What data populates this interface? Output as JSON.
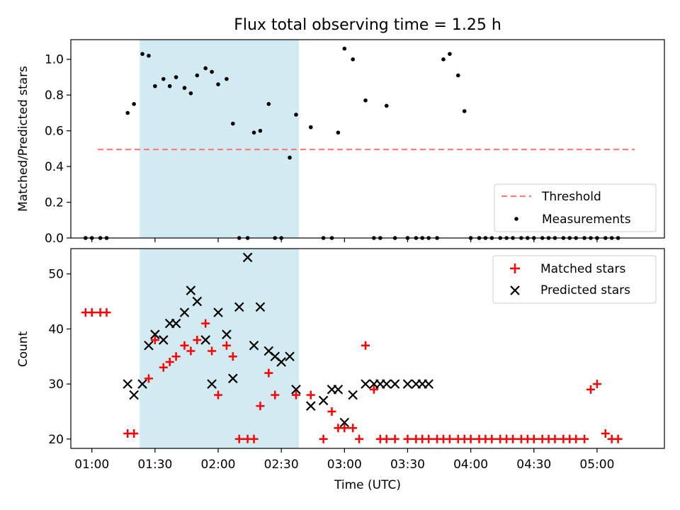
{
  "chart_data": [
    {
      "type": "scatter",
      "title": "Flux total observing time = 1.25 h",
      "xlabel": "",
      "ylabel": "Matched/Predicted stars",
      "ylim": [
        0,
        1.11
      ],
      "yticks": [
        0.0,
        0.2,
        0.4,
        0.6,
        0.8,
        1.0
      ],
      "ytick_labels": [
        "0.0",
        "0.2",
        "0.4",
        "0.6",
        "0.8",
        "1.0"
      ],
      "highlight_span": {
        "x_start": "01:17",
        "x_end": "02:32",
        "color": "#add8e6"
      },
      "threshold": {
        "name": "Threshold",
        "y": 0.5,
        "x_start": "00:57",
        "x_end": "05:10",
        "color": "#ff7f7f"
      },
      "legend": {
        "position": "lower right",
        "entries": [
          "Threshold",
          "Measurements"
        ]
      },
      "series": [
        {
          "name": "Measurements",
          "color": "#000000",
          "x": [
            "00:57",
            "01:00",
            "01:04",
            "01:07",
            "01:17",
            "01:20",
            "01:24",
            "01:27",
            "01:30",
            "01:34",
            "01:37",
            "01:40",
            "01:44",
            "01:47",
            "01:50",
            "01:54",
            "01:57",
            "02:00",
            "02:04",
            "02:07",
            "02:10",
            "02:14",
            "02:17",
            "02:20",
            "02:24",
            "02:27",
            "02:30",
            "02:34",
            "02:37",
            "02:44",
            "02:50",
            "02:54",
            "02:57",
            "03:00",
            "03:04",
            "03:10",
            "03:14",
            "03:17",
            "03:20",
            "03:24",
            "03:30",
            "03:34",
            "03:37",
            "03:40",
            "03:44",
            "03:47",
            "03:50",
            "03:54",
            "03:57",
            "04:00",
            "04:04",
            "04:07",
            "04:10",
            "04:14",
            "04:17",
            "04:20",
            "04:24",
            "04:27",
            "04:30",
            "04:34",
            "04:37",
            "04:40",
            "04:44",
            "04:47",
            "04:50",
            "04:54",
            "04:57",
            "05:00",
            "05:04",
            "05:07",
            "05:10"
          ],
          "y": [
            0,
            0,
            0,
            0,
            0.7,
            0.75,
            1.03,
            1.02,
            0.85,
            0.89,
            0.85,
            0.9,
            0.84,
            0.81,
            0.91,
            0.95,
            0.93,
            0.86,
            0.89,
            0.64,
            0,
            0,
            0.59,
            0.6,
            0.75,
            0,
            0,
            0.45,
            0.69,
            0.62,
            0,
            0,
            0.59,
            1.06,
            1.0,
            0.77,
            0,
            0,
            0.74,
            0,
            0,
            0,
            0,
            0,
            0,
            1.0,
            1.03,
            0.91,
            0.71,
            0,
            0,
            0,
            0,
            0,
            0,
            0,
            0,
            0,
            0,
            0,
            0,
            0,
            0,
            0,
            0,
            0,
            0,
            0,
            0,
            0,
            0
          ]
        }
      ]
    },
    {
      "type": "scatter",
      "title": "",
      "xlabel": "Time (UTC)",
      "ylabel": "Count",
      "ylim": [
        18.3,
        54.6
      ],
      "yticks": [
        20,
        30,
        40,
        50
      ],
      "ytick_labels": [
        "20",
        "30",
        "40",
        "50"
      ],
      "xticks": [
        "01:00",
        "01:30",
        "02:00",
        "02:30",
        "03:00",
        "03:30",
        "04:00",
        "04:30",
        "05:00"
      ],
      "xtick_labels": [
        "01:00",
        "01:30",
        "02:00",
        "02:30",
        "03:00",
        "03:30",
        "04:00",
        "04:30",
        "05:00"
      ],
      "x_range": [
        "00:50",
        "05:32"
      ],
      "highlight_span": {
        "x_start": "01:17",
        "x_end": "02:32",
        "color": "#add8e6"
      },
      "legend": {
        "position": "upper right",
        "entries": [
          "Matched stars",
          "Predicted stars"
        ]
      },
      "series": [
        {
          "name": "Matched stars",
          "marker": "+",
          "color": "#ff0000",
          "x": [
            "00:57",
            "01:00",
            "01:04",
            "01:07",
            "01:17",
            "01:20",
            "01:27",
            "01:30",
            "01:34",
            "01:37",
            "01:40",
            "01:44",
            "01:47",
            "01:50",
            "01:54",
            "01:57",
            "02:00",
            "02:04",
            "02:07",
            "02:10",
            "02:14",
            "02:17",
            "02:20",
            "02:24",
            "02:27",
            "02:37",
            "02:44",
            "02:50",
            "02:54",
            "02:57",
            "03:00",
            "03:04",
            "03:07",
            "03:10",
            "03:14",
            "03:17",
            "03:20",
            "03:24",
            "03:30",
            "03:34",
            "03:37",
            "03:40",
            "03:44",
            "03:47",
            "03:50",
            "03:54",
            "03:57",
            "04:00",
            "04:04",
            "04:07",
            "04:10",
            "04:14",
            "04:17",
            "04:20",
            "04:24",
            "04:27",
            "04:30",
            "04:34",
            "04:37",
            "04:40",
            "04:44",
            "04:47",
            "04:50",
            "04:54",
            "04:57",
            "05:00",
            "05:04",
            "05:07",
            "05:10"
          ],
          "y": [
            43,
            43,
            43,
            43,
            21,
            21,
            31,
            38,
            33,
            34,
            35,
            37,
            36,
            38,
            41,
            36,
            28,
            37,
            35,
            20,
            20,
            20,
            26,
            32,
            28,
            28,
            28,
            20,
            25,
            22,
            22,
            22,
            20,
            37,
            29,
            20,
            20,
            20,
            20,
            20,
            20,
            20,
            20,
            20,
            20,
            20,
            20,
            20,
            20,
            20,
            20,
            20,
            20,
            20,
            20,
            20,
            20,
            20,
            20,
            20,
            20,
            20,
            20,
            20,
            29,
            30,
            21,
            20,
            20
          ]
        },
        {
          "name": "Predicted stars",
          "marker": "x",
          "color": "#000000",
          "x": [
            "01:17",
            "01:20",
            "01:24",
            "01:27",
            "01:30",
            "01:34",
            "01:37",
            "01:40",
            "01:44",
            "01:47",
            "01:50",
            "01:54",
            "01:57",
            "02:00",
            "02:04",
            "02:07",
            "02:10",
            "02:14",
            "02:17",
            "02:20",
            "02:24",
            "02:27",
            "02:30",
            "02:34",
            "02:37",
            "02:44",
            "02:50",
            "02:54",
            "02:57",
            "03:00",
            "03:04",
            "03:10",
            "03:14",
            "03:17",
            "03:20",
            "03:24",
            "03:30",
            "03:34",
            "03:37",
            "03:40"
          ],
          "y": [
            30,
            28,
            30,
            37,
            39,
            38,
            41,
            41,
            43,
            47,
            45,
            38,
            30,
            43,
            39,
            31,
            44,
            53,
            37,
            44,
            36,
            35,
            34,
            35,
            29,
            26,
            27,
            29,
            29,
            23,
            28,
            30,
            30,
            30,
            30,
            30,
            30,
            30,
            30,
            30
          ]
        }
      ]
    }
  ]
}
